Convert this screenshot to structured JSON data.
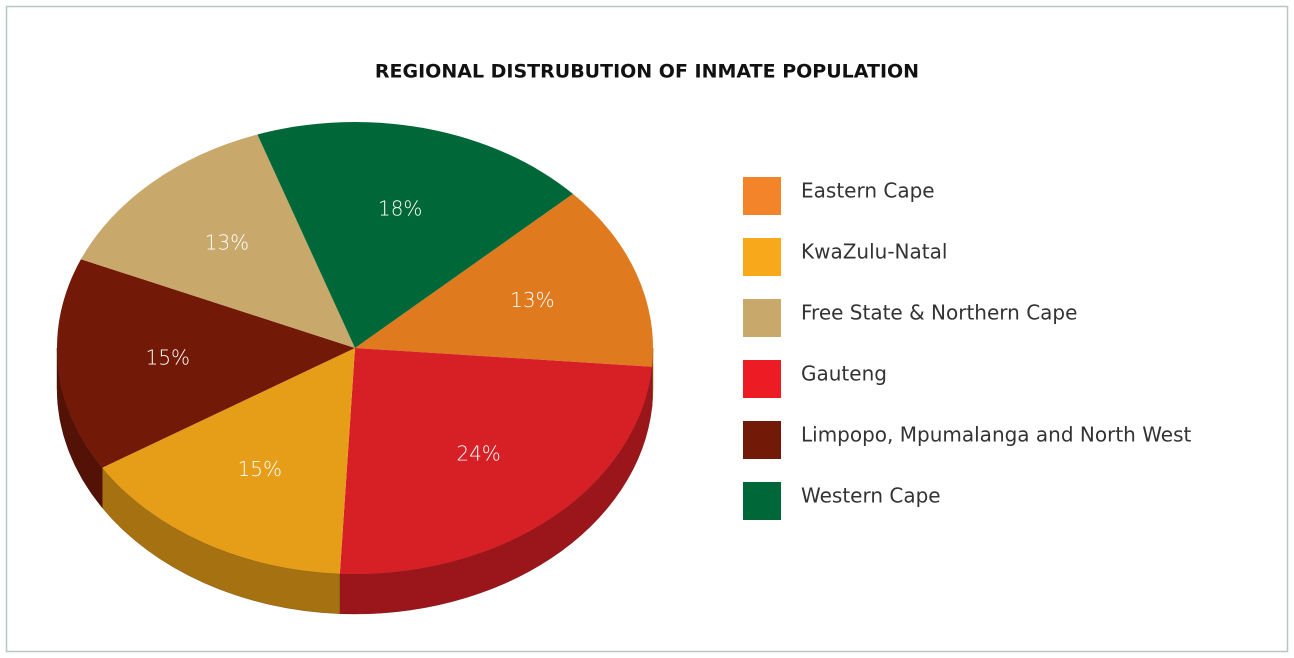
{
  "chart_data": {
    "type": "pie",
    "title": "REGIONAL DISTRUBUTION OF INMATE POPULATION",
    "categories": [
      "Eastern Cape",
      "KwaZulu-Natal",
      "Free State & Northern Cape",
      "Gauteng",
      "Limpopo, Mpumalanga and North West",
      "Western Cape"
    ],
    "values": [
      13,
      15,
      13,
      24,
      15,
      18
    ],
    "value_labels": [
      "13%",
      "15%",
      "13%",
      "24%",
      "15%",
      "18%"
    ],
    "colors": [
      "#e07a1f",
      "#e69d17",
      "#c8a96b",
      "#d71f26",
      "#731907",
      "#006838"
    ],
    "legend_colors": [
      "#f3842a",
      "#f8a81b",
      "#c8a96b",
      "#ed1c24",
      "#731907",
      "#006838"
    ],
    "slice_order": [
      0,
      3,
      1,
      4,
      2,
      5
    ],
    "legend": "right"
  }
}
